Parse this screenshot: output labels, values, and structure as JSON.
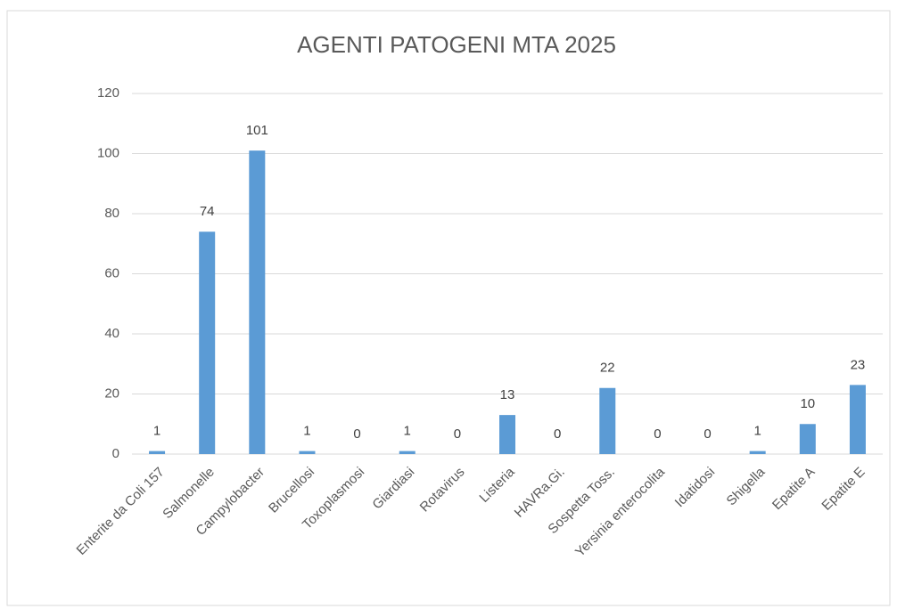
{
  "chart_data": {
    "type": "bar",
    "title": "AGENTI PATOGENI MTA 2025",
    "categories": [
      "Enterite da Coli 157",
      "Salmonelle",
      "Campylobacter",
      "Brucellosi",
      "Toxoplasmosi",
      "Giardiasi",
      "Rotavirus",
      "Listeria",
      "HAVRa.Gi.",
      "Sospetta Toss.",
      "Yersinia enterocolita",
      "Idatidosi",
      "Shigella",
      "Epatite A",
      "Epatite E"
    ],
    "values": [
      1,
      74,
      101,
      1,
      0,
      1,
      0,
      13,
      0,
      22,
      0,
      0,
      1,
      10,
      23
    ],
    "color": "#5b9bd5",
    "ylim": [
      0,
      120
    ],
    "yticks": [
      0,
      20,
      40,
      60,
      80,
      100,
      120
    ],
    "grid": true
  }
}
